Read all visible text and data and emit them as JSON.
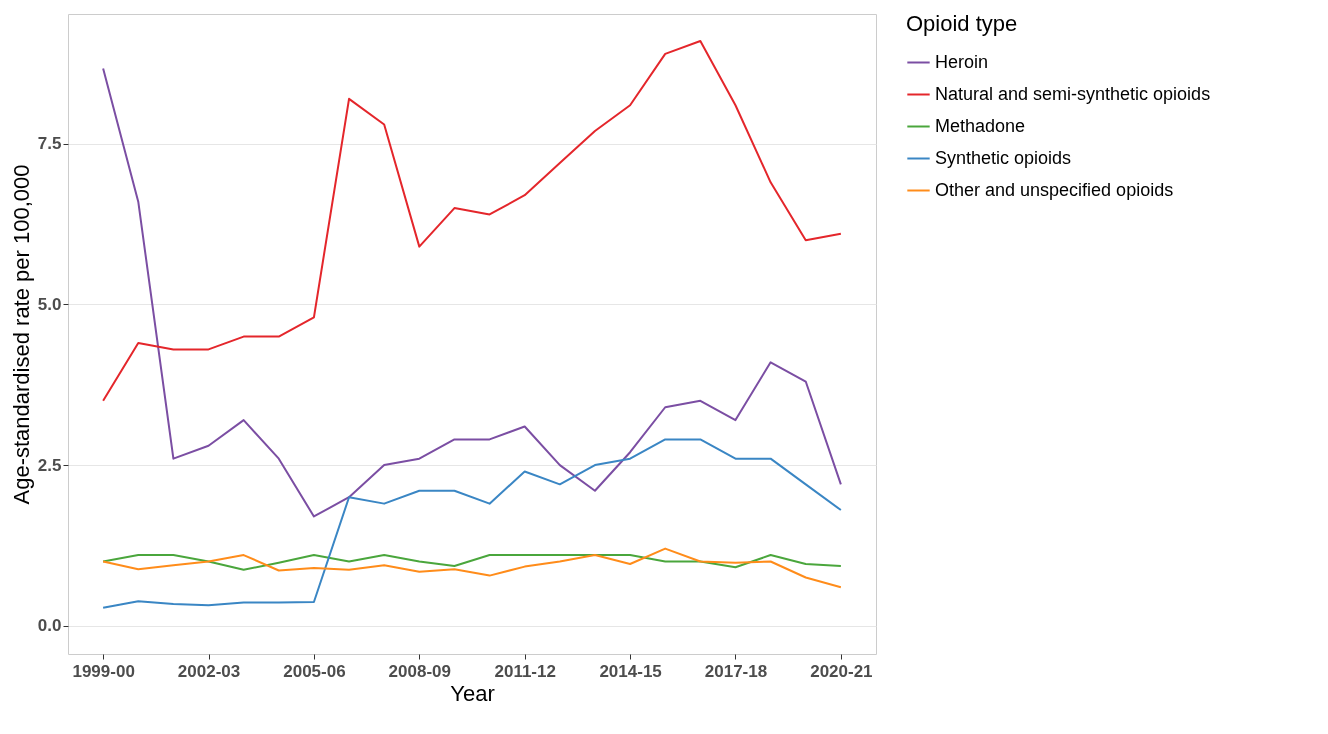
{
  "chart_data": {
    "type": "line",
    "xlabel": "Year",
    "ylabel": "Age-standardised rate per 100,000",
    "legend_title": "Opioid type",
    "legend": "right",
    "grid": "y",
    "categories": [
      "1999-00",
      null,
      null,
      "2002-03",
      null,
      null,
      "2005-06",
      null,
      null,
      "2008-09",
      null,
      null,
      "2011-12",
      null,
      null,
      "2014-15",
      null,
      null,
      "2017-18",
      null,
      null,
      "2020-21"
    ],
    "ylim": [
      -0.44,
      9.52
    ],
    "yticks": [
      {
        "value": 0,
        "label": "0.0"
      },
      2.5,
      {
        "value": 5,
        "label": "5.0"
      },
      7.5
    ],
    "series": [
      {
        "name": "Heroin",
        "color": "#7b4ea3",
        "values": [
          8.67,
          6.6,
          2.6,
          2.8,
          3.2,
          2.6,
          1.7,
          2.0,
          2.5,
          2.6,
          2.9,
          2.9,
          3.1,
          2.5,
          2.1,
          2.7,
          3.4,
          3.5,
          3.2,
          4.1,
          3.8,
          2.2
        ]
      },
      {
        "name": "Natural and semi-synthetic opioids",
        "color": "#e4262b",
        "values": [
          3.5,
          4.4,
          4.3,
          4.3,
          4.5,
          4.5,
          4.8,
          8.2,
          7.8,
          5.9,
          6.5,
          6.4,
          6.7,
          7.2,
          7.7,
          8.1,
          8.9,
          9.1,
          8.1,
          6.9,
          6.0,
          6.1
        ]
      },
      {
        "name": "Methadone",
        "color": "#4aa63c",
        "values": [
          1.0,
          1.1,
          1.1,
          1.0,
          0.87,
          0.98,
          1.1,
          1.0,
          1.1,
          1.0,
          0.93,
          1.1,
          1.1,
          1.1,
          1.1,
          1.1,
          1.0,
          1.0,
          0.91,
          1.1,
          0.96,
          0.93
        ]
      },
      {
        "name": "Synthetic opioids",
        "color": "#3a86c4",
        "values": [
          0.28,
          0.38,
          0.34,
          0.32,
          0.36,
          0.36,
          0.37,
          2.0,
          1.9,
          2.1,
          2.1,
          1.9,
          2.4,
          2.2,
          2.5,
          2.6,
          2.9,
          2.9,
          2.6,
          2.6,
          2.2,
          1.8
        ]
      },
      {
        "name": "Other and unspecified opioids",
        "color": "#ff8c1a",
        "values": [
          1.0,
          0.88,
          0.94,
          1.0,
          1.1,
          0.86,
          0.9,
          0.87,
          0.94,
          0.84,
          0.88,
          0.78,
          0.92,
          1.0,
          1.1,
          0.96,
          1.2,
          1.0,
          0.98,
          1.0,
          0.75,
          0.6
        ]
      }
    ]
  }
}
